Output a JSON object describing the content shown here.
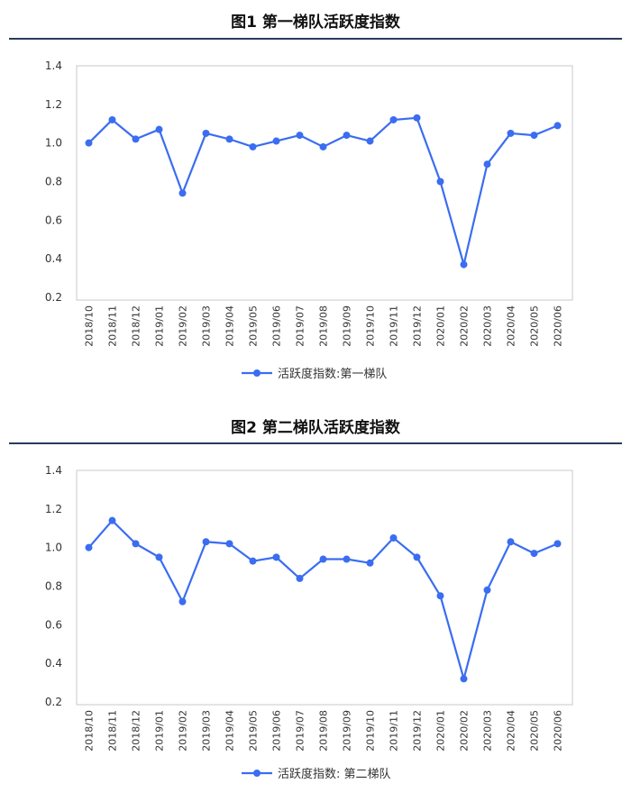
{
  "colors": {
    "series": "#3a6df0",
    "rule": "#2b3a5c",
    "frame": "#c8c8c8"
  },
  "chart_data": [
    {
      "type": "line",
      "title": "图1  第一梯队活跃度指数",
      "categories": [
        "2018/10",
        "2018/11",
        "2018/12",
        "2019/01",
        "2019/02",
        "2019/03",
        "2019/04",
        "2019/05",
        "2019/06",
        "2019/07",
        "2019/08",
        "2019/09",
        "2019/10",
        "2019/11",
        "2019/12",
        "2020/01",
        "2020/02",
        "2020/03",
        "2020/04",
        "2020/05",
        "2020/06"
      ],
      "series": [
        {
          "name": "活跃度指数:第一梯队",
          "values": [
            1.0,
            1.12,
            1.02,
            1.07,
            0.74,
            1.05,
            1.02,
            0.98,
            1.01,
            1.04,
            0.98,
            1.04,
            1.01,
            1.12,
            1.13,
            0.8,
            0.37,
            0.89,
            1.05,
            1.04,
            1.09
          ]
        }
      ],
      "yticks": [
        "0.2",
        "0.4",
        "0.6",
        "0.8",
        "1.0",
        "1.2",
        "1.4"
      ],
      "ylim": [
        0.2,
        1.4
      ],
      "grid": false,
      "legend": "bottom-center"
    },
    {
      "type": "line",
      "title": "图2  第二梯队活跃度指数",
      "categories": [
        "2018/10",
        "2018/11",
        "2018/12",
        "2019/01",
        "2019/02",
        "2019/03",
        "2019/04",
        "2019/05",
        "2019/06",
        "2019/07",
        "2019/08",
        "2019/09",
        "2019/10",
        "2019/11",
        "2019/12",
        "2020/01",
        "2020/02",
        "2020/03",
        "2020/04",
        "2020/05",
        "2020/06"
      ],
      "series": [
        {
          "name": "活跃度指数: 第二梯队",
          "values": [
            1.0,
            1.14,
            1.02,
            0.95,
            0.72,
            1.03,
            1.02,
            0.93,
            0.95,
            0.84,
            0.94,
            0.94,
            0.92,
            1.05,
            0.95,
            0.75,
            0.32,
            0.78,
            1.03,
            0.97,
            1.02
          ]
        }
      ],
      "yticks": [
        "0.2",
        "0.4",
        "0.6",
        "0.8",
        "1.0",
        "1.2",
        "1.4"
      ],
      "ylim": [
        0.2,
        1.4
      ],
      "grid": false,
      "legend": "bottom-center"
    }
  ]
}
